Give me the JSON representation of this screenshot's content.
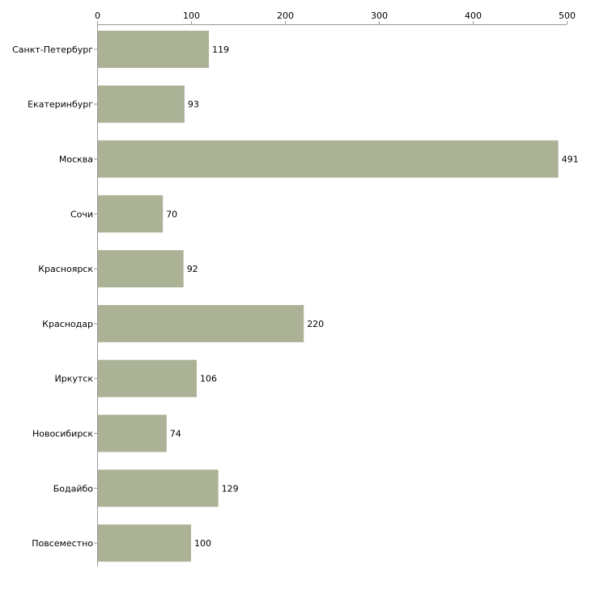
{
  "chart_data": {
    "type": "bar",
    "orientation": "horizontal",
    "title": "",
    "xlabel": "",
    "ylabel": "",
    "xlim": [
      0,
      500
    ],
    "ticks": [
      0,
      100,
      200,
      300,
      400,
      500
    ],
    "tick_labels": [
      "0",
      "100",
      "200",
      "300",
      "400",
      "500"
    ],
    "axis_position": "top",
    "grid": false,
    "categories": [
      "Санкт-Петербург",
      "Екатеринбург",
      "Москва",
      "Сочи",
      "Красноярск",
      "Краснодар",
      "Иркутск",
      "Новосибирск",
      "Бодайбо",
      "Повсеместно"
    ],
    "values": [
      119,
      93,
      491,
      70,
      92,
      220,
      106,
      74,
      129,
      100
    ],
    "value_labels": [
      "119",
      "93",
      "491",
      "70",
      "92",
      "220",
      "106",
      "74",
      "129",
      "100"
    ],
    "colors": {
      "bar": "#acb296",
      "axis": "#999999",
      "text": "#000000"
    }
  }
}
